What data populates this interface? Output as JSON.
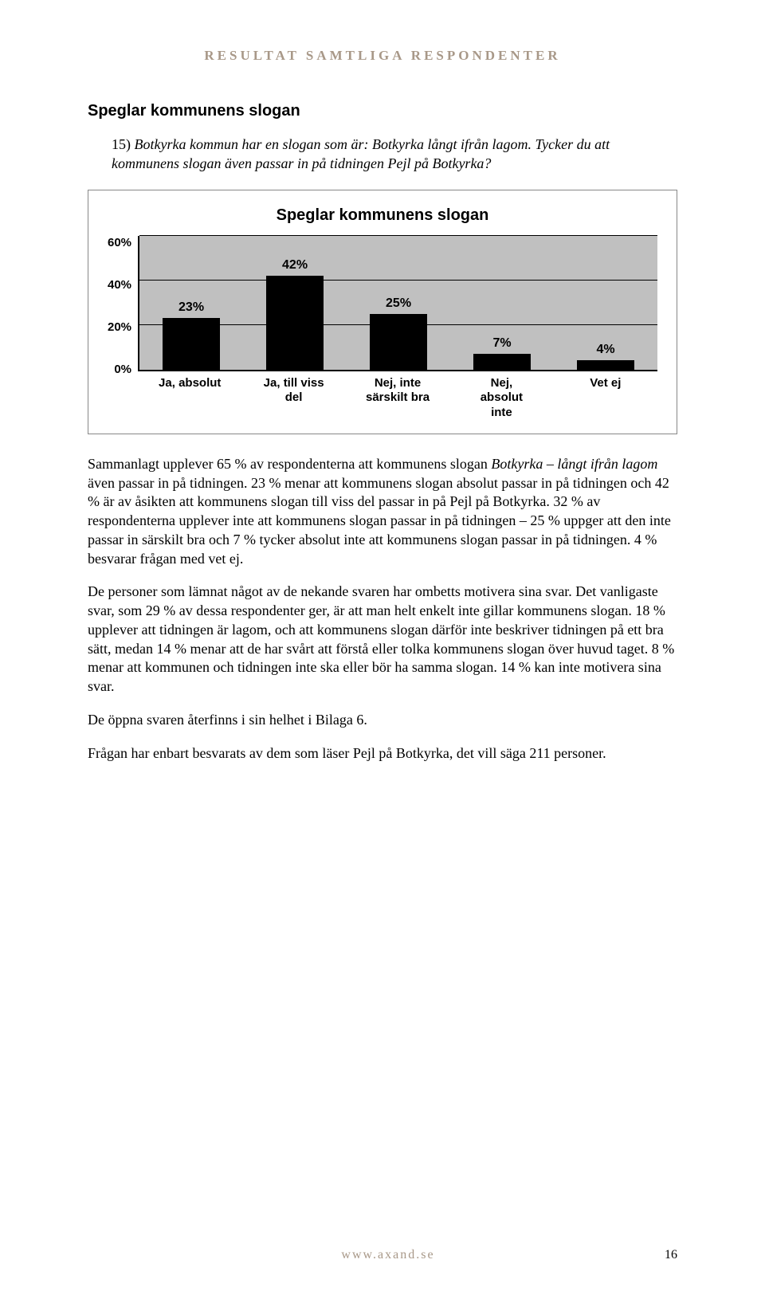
{
  "header": {
    "text": "RESULTAT SAMTLIGA RESPONDENTER"
  },
  "section_title": "Speglar kommunens slogan",
  "question": {
    "number": "15)",
    "text_before": "Botkyrka kommun har en slogan som är: ",
    "slogan": "Botkyrka långt ifrån lagom",
    "text_after": ". Tycker du att kommunens slogan även passar in på tidningen Pejl på Botkyrka?"
  },
  "chart": {
    "title": "Speglar kommunens slogan",
    "type": "bar",
    "categories": [
      "Ja, absolut",
      "Ja, till viss del",
      "Nej, inte särskilt bra",
      "Nej, absolut inte",
      "Vet ej"
    ],
    "values": [
      23,
      42,
      25,
      7,
      4
    ],
    "value_labels": [
      "23%",
      "42%",
      "25%",
      "7%",
      "4%"
    ],
    "ymax": 60,
    "ytick_step": 20,
    "yticks": [
      "60%",
      "40%",
      "20%",
      "0%"
    ],
    "bar_color": "#000000",
    "plot_bg": "#c0c0c0",
    "grid_color": "#000000",
    "font_family": "Arial",
    "label_fontsize": 15,
    "value_fontsize": 16,
    "title_fontsize": 20
  },
  "paragraphs": {
    "p1_a": "Sammanlagt upplever 65 % av respondenterna att kommunens slogan ",
    "p1_ital": "Botkyrka – långt ifrån lagom",
    "p1_b": " även passar in på tidningen. 23 % menar att kommunens slogan absolut passar in på tidningen och 42 % är av åsikten att kommunens slogan till viss del passar in på Pejl på Botkyrka. 32 % av respondenterna upplever inte att kommunens slogan passar in på tidningen – 25 % uppger att den inte passar in särskilt bra och 7 % tycker absolut inte att kommunens slogan passar in på tidningen. 4 % besvarar frågan med vet ej.",
    "p2": "De personer som lämnat något av de nekande svaren har ombetts motivera sina svar. Det vanligaste svar, som 29 % av dessa respondenter ger, är att man helt enkelt inte gillar kommunens slogan. 18 % upplever att tidningen är lagom, och att kommunens slogan därför inte beskriver tidningen på ett bra sätt, medan 14 % menar att de har svårt att förstå eller tolka kommunens slogan över huvud taget. 8 % menar att kommunen och tidningen inte ska eller bör ha samma slogan. 14 % kan inte motivera sina svar.",
    "p3": "De öppna svaren återfinns i sin helhet i Bilaga 6.",
    "p4": "Frågan har enbart besvarats av dem som läser Pejl på Botkyrka, det vill säga 211 personer."
  },
  "footer": {
    "url": "www.axand.se",
    "page": "16"
  }
}
